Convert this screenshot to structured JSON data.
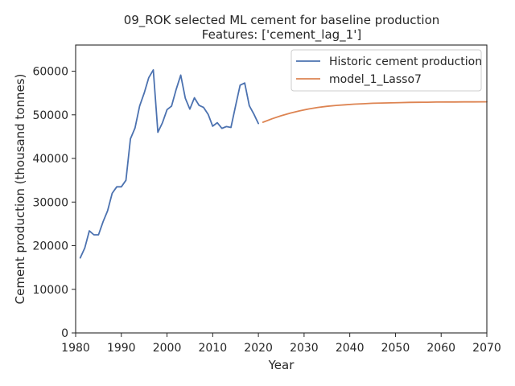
{
  "chart_data": {
    "type": "line",
    "title": "09_ROK selected ML cement for baseline production",
    "subtitle": "Features: ['cement_lag_1']",
    "xlabel": "Year",
    "ylabel": "Cement production (thousand tonnes)",
    "xlim": [
      1980,
      2070
    ],
    "ylim": [
      0,
      66000
    ],
    "xticks": [
      1980,
      1990,
      2000,
      2010,
      2020,
      2030,
      2040,
      2050,
      2060,
      2070
    ],
    "yticks": [
      0,
      10000,
      20000,
      30000,
      40000,
      50000,
      60000
    ],
    "grid": false,
    "legend_position": "top-right",
    "series": [
      {
        "name": "Historic cement production",
        "color": "#4c72b0",
        "x": [
          1981,
          1982,
          1983,
          1984,
          1985,
          1986,
          1987,
          1988,
          1989,
          1990,
          1991,
          1992,
          1993,
          1994,
          1995,
          1996,
          1997,
          1998,
          1999,
          2000,
          2001,
          2002,
          2003,
          2004,
          2005,
          2006,
          2007,
          2008,
          2009,
          2010,
          2011,
          2012,
          2013,
          2014,
          2015,
          2016,
          2017,
          2018,
          2019,
          2020
        ],
        "y": [
          17200,
          19500,
          23400,
          22500,
          22500,
          25500,
          28000,
          32000,
          33500,
          33500,
          35000,
          44500,
          47000,
          52000,
          55000,
          58500,
          60300,
          46000,
          48200,
          51200,
          52000,
          55800,
          59100,
          53800,
          51300,
          53900,
          52200,
          51700,
          50100,
          47400,
          48200,
          46900,
          47300,
          47100,
          52000,
          56800,
          57300,
          52100,
          50200,
          48000
        ]
      },
      {
        "name": "model_1_Lasso7",
        "color": "#dd8452",
        "x": [
          2021,
          2023,
          2025,
          2027,
          2029,
          2031,
          2033,
          2035,
          2037,
          2039,
          2041,
          2043,
          2045,
          2047,
          2049,
          2051,
          2053,
          2055,
          2057,
          2059,
          2061,
          2063,
          2065,
          2067,
          2070
        ],
        "y": [
          48300,
          49100,
          49800,
          50400,
          50900,
          51350,
          51700,
          51950,
          52150,
          52300,
          52450,
          52550,
          52650,
          52700,
          52750,
          52800,
          52850,
          52870,
          52900,
          52920,
          52940,
          52950,
          52960,
          52970,
          52980
        ]
      }
    ]
  }
}
